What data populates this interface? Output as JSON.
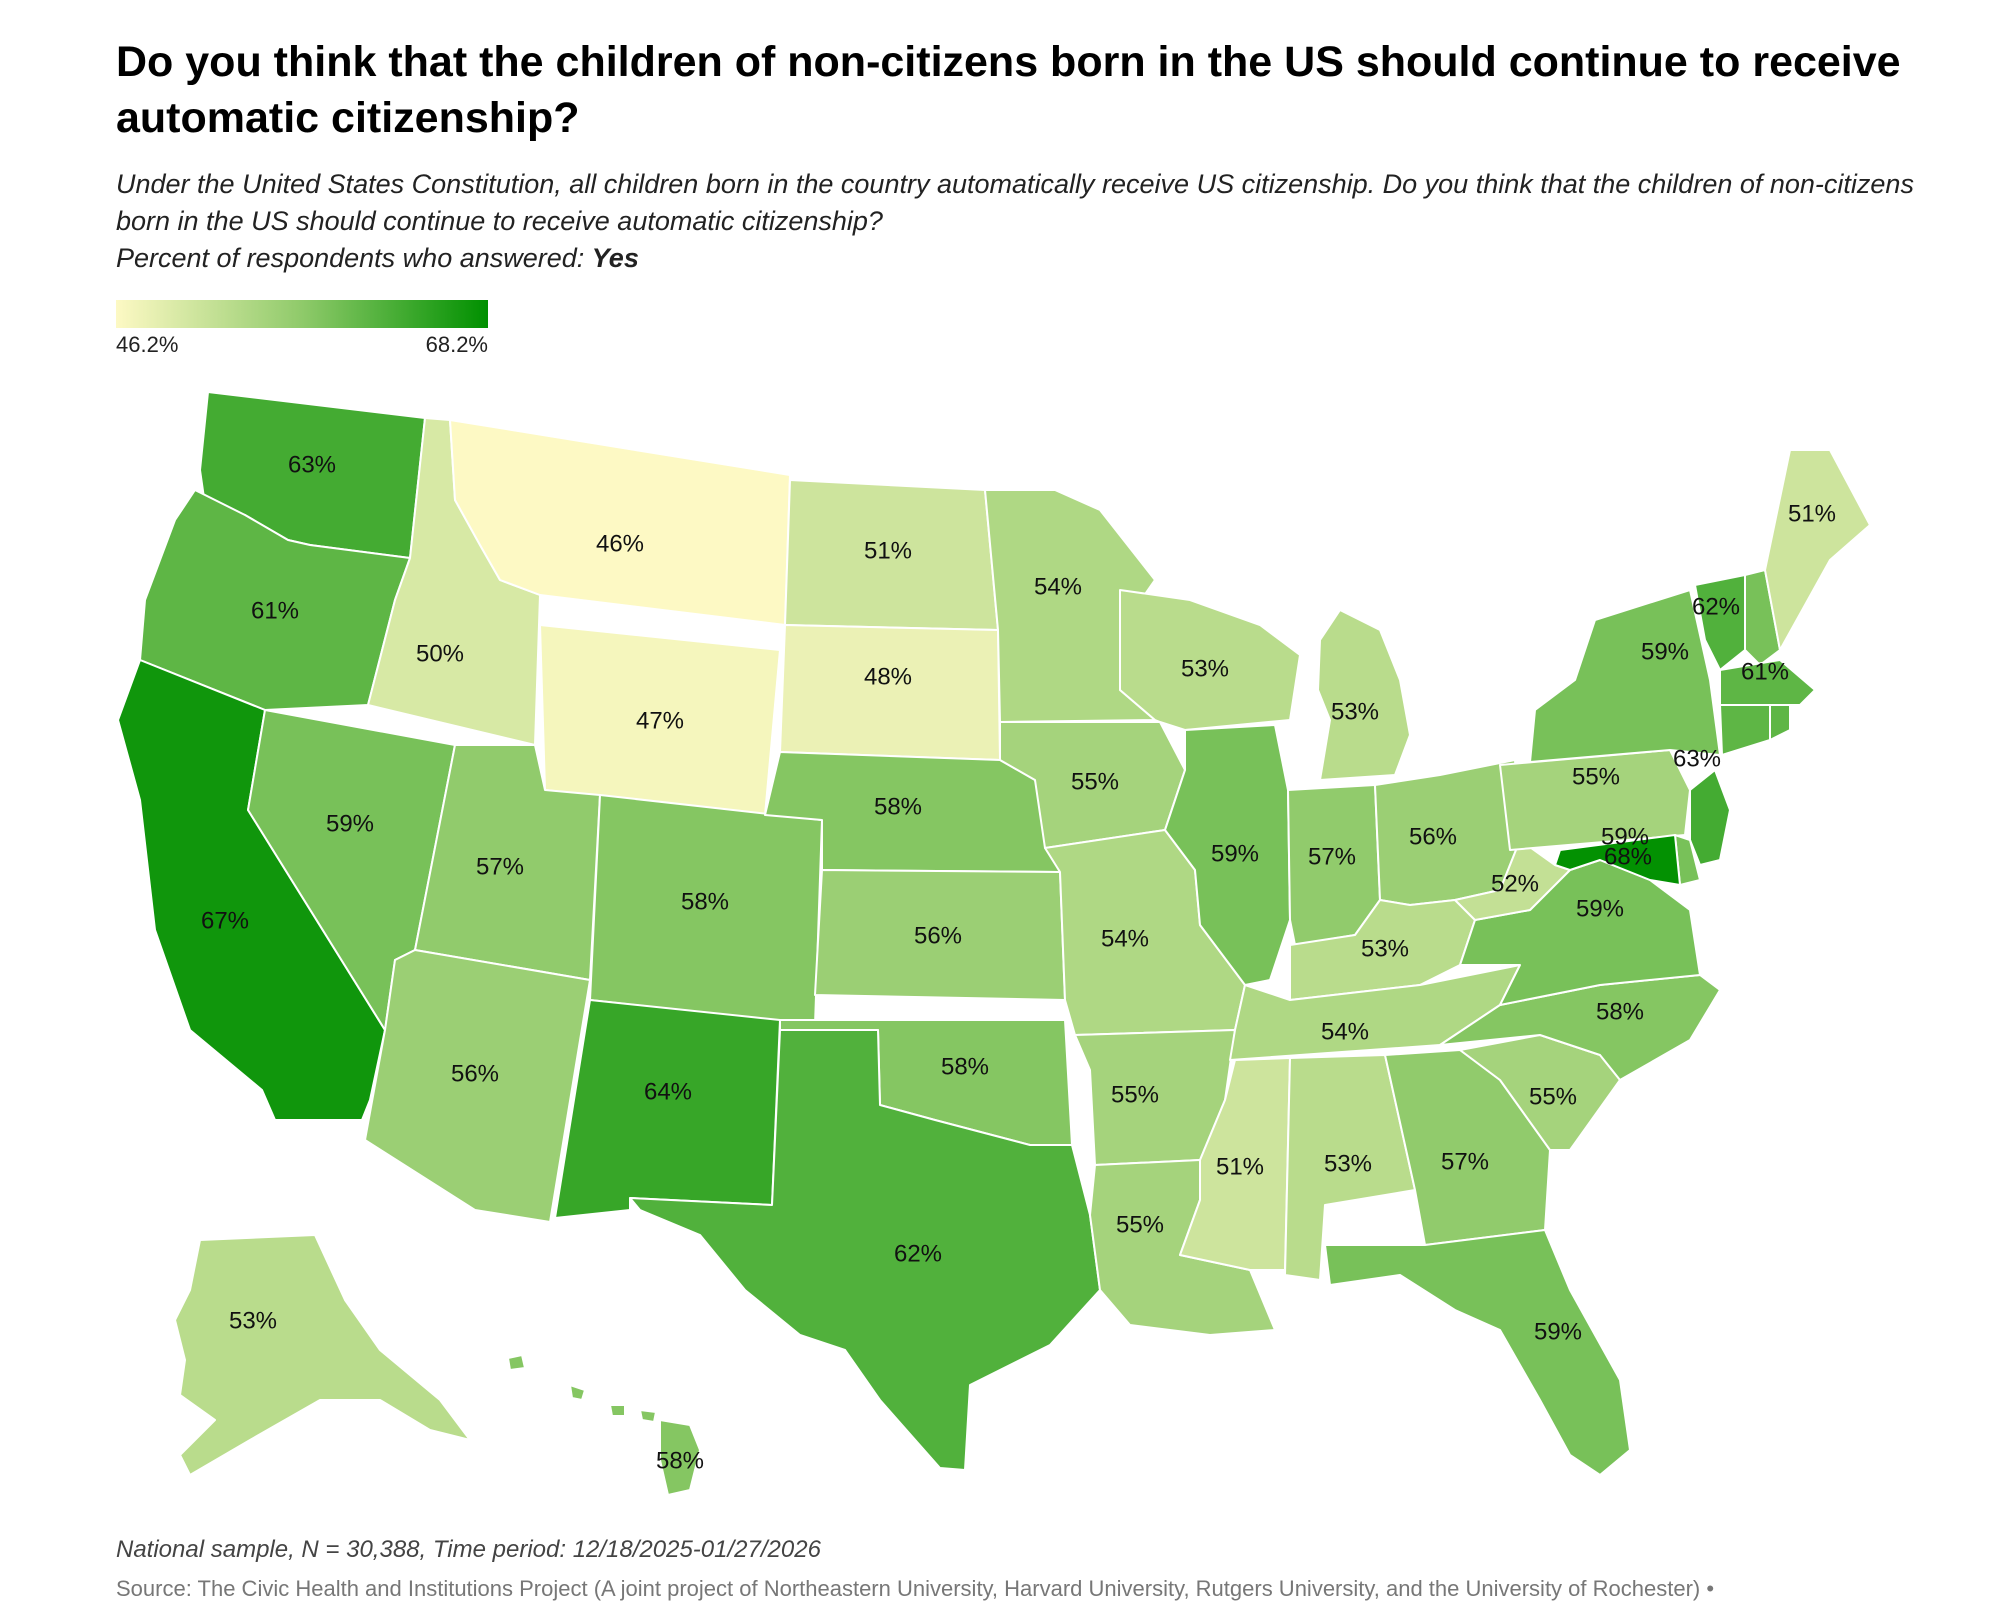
{
  "title": "Do you think that the children of non-citizens born in the US should continue to receive automatic citizenship?",
  "subtitle_line1": "Under the United States Constitution, all children born in the country automatically receive US citizenship. Do you think that the children of non-citizens born in the US should continue to receive automatic citizenship?",
  "subtitle_prefix": "Percent of respondents who answered:",
  "subtitle_answer": "Yes",
  "legend": {
    "min_label": "46.2%",
    "max_label": "68.2%",
    "min": 46.2,
    "max": 68.2,
    "color_low": "#fdf9c4",
    "color_mid": "#8fca6a",
    "color_high": "#009000"
  },
  "chart_data": {
    "type": "choropleth",
    "unit": "%",
    "states": [
      {
        "state": "WA",
        "value": 63,
        "label": "63%"
      },
      {
        "state": "OR",
        "value": 61,
        "label": "61%"
      },
      {
        "state": "CA",
        "value": 67,
        "label": "67%"
      },
      {
        "state": "ID",
        "value": 50,
        "label": "50%"
      },
      {
        "state": "NV",
        "value": 59,
        "label": "59%"
      },
      {
        "state": "MT",
        "value": 46,
        "label": "46%"
      },
      {
        "state": "WY",
        "value": 47,
        "label": "47%"
      },
      {
        "state": "UT",
        "value": 57,
        "label": "57%"
      },
      {
        "state": "AZ",
        "value": 56,
        "label": "56%"
      },
      {
        "state": "CO",
        "value": 58,
        "label": "58%"
      },
      {
        "state": "NM",
        "value": 64,
        "label": "64%"
      },
      {
        "state": "ND",
        "value": 51,
        "label": "51%"
      },
      {
        "state": "SD",
        "value": 48,
        "label": "48%"
      },
      {
        "state": "NE",
        "value": 58,
        "label": "58%"
      },
      {
        "state": "KS",
        "value": 56,
        "label": "56%"
      },
      {
        "state": "OK",
        "value": 58,
        "label": "58%"
      },
      {
        "state": "TX",
        "value": 62,
        "label": "62%"
      },
      {
        "state": "MN",
        "value": 54,
        "label": "54%"
      },
      {
        "state": "IA",
        "value": 55,
        "label": "55%"
      },
      {
        "state": "MO",
        "value": 54,
        "label": "54%"
      },
      {
        "state": "AR",
        "value": 55,
        "label": "55%"
      },
      {
        "state": "LA",
        "value": 55,
        "label": "55%"
      },
      {
        "state": "WI",
        "value": 53,
        "label": "53%"
      },
      {
        "state": "IL",
        "value": 59,
        "label": "59%"
      },
      {
        "state": "MI",
        "value": 53,
        "label": "53%"
      },
      {
        "state": "IN",
        "value": 57,
        "label": "57%"
      },
      {
        "state": "OH",
        "value": 56,
        "label": "56%"
      },
      {
        "state": "KY",
        "value": 53,
        "label": "53%"
      },
      {
        "state": "TN",
        "value": 54,
        "label": "54%"
      },
      {
        "state": "MS",
        "value": 51,
        "label": "51%"
      },
      {
        "state": "AL",
        "value": 53,
        "label": "53%"
      },
      {
        "state": "GA",
        "value": 57,
        "label": "57%"
      },
      {
        "state": "FL",
        "value": 59,
        "label": "59%"
      },
      {
        "state": "SC",
        "value": 55,
        "label": "55%"
      },
      {
        "state": "NC",
        "value": 58,
        "label": "58%"
      },
      {
        "state": "VA",
        "value": 59,
        "label": "59%"
      },
      {
        "state": "WV",
        "value": 52,
        "label": "52%"
      },
      {
        "state": "PA",
        "value": 55,
        "label": "55%"
      },
      {
        "state": "NY",
        "value": 59,
        "label": "59%"
      },
      {
        "state": "VT",
        "value": 62,
        "label": "62%"
      },
      {
        "state": "NH",
        "value": 59,
        "label": ""
      },
      {
        "state": "MA",
        "value": 61,
        "label": "61%"
      },
      {
        "state": "CT",
        "value": 61,
        "label": ""
      },
      {
        "state": "RI",
        "value": 61,
        "label": ""
      },
      {
        "state": "NJ",
        "value": 63,
        "label": "63%"
      },
      {
        "state": "DE",
        "value": 59,
        "label": "59%"
      },
      {
        "state": "MD",
        "value": 68,
        "label": "68%"
      },
      {
        "state": "ME",
        "value": 51,
        "label": "51%"
      },
      {
        "state": "AK",
        "value": 53,
        "label": "53%"
      },
      {
        "state": "HI",
        "value": 58,
        "label": "58%"
      }
    ]
  },
  "footnote": "National sample, N = 30,388, Time period: 12/18/2025-01/27/2026",
  "source": "Source: The Civic Health and Institutions Project (A joint project of Northeastern University, Harvard University, Rutgers University, and the University of Rochester) •"
}
